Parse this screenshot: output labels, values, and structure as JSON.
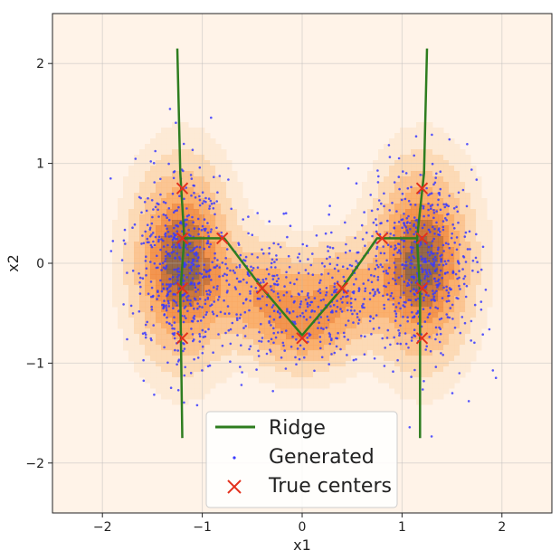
{
  "chart_data": {
    "type": "scatter",
    "title": "",
    "xlabel": "x1",
    "ylabel": "x2",
    "xlim": [
      -2.5,
      2.5
    ],
    "ylim": [
      -2.5,
      2.5
    ],
    "xticks": [
      -2,
      -1,
      0,
      1,
      2
    ],
    "yticks": [
      -2,
      -1,
      0,
      1,
      2
    ],
    "xtick_labels": [
      "−2",
      "−1",
      "0",
      "1",
      "2"
    ],
    "ytick_labels": [
      "−2",
      "−1",
      "0",
      "1",
      "2"
    ],
    "grid": true,
    "legend_position": "bottom-center",
    "background_color": "#fff3e8",
    "density": {
      "description": "KDE of generated samples; filled contours (light cream to dark orange/brown)",
      "colors": [
        "#fde9d4",
        "#fcd7b0",
        "#fbc08a",
        "#f9a860",
        "#f18b3f",
        "#c56a2c",
        "#8a5a3a"
      ],
      "components": [
        {
          "center": [
            -1.2,
            0.0
          ],
          "sigma_x": 0.28,
          "sigma_y": 0.55,
          "weight": 1.0
        },
        {
          "center": [
            1.2,
            0.0
          ],
          "sigma_x": 0.28,
          "sigma_y": 0.55,
          "weight": 1.0
        },
        {
          "center": [
            -0.4,
            -0.3
          ],
          "sigma_x": 0.3,
          "sigma_y": 0.3,
          "weight": 0.5
        },
        {
          "center": [
            0.4,
            -0.3
          ],
          "sigma_x": 0.3,
          "sigma_y": 0.3,
          "weight": 0.5
        },
        {
          "center": [
            0.0,
            -0.7
          ],
          "sigma_x": 0.3,
          "sigma_y": 0.25,
          "weight": 0.45
        }
      ]
    },
    "series": [
      {
        "name": "Ridge",
        "kind": "line",
        "color": "#2e7d1f",
        "segments": [
          {
            "x": [
              -1.25,
              -1.22,
              -1.18,
              -1.22,
              -1.2
            ],
            "y": [
              2.15,
              0.9,
              0.25,
              -0.3,
              -1.75
            ]
          },
          {
            "x": [
              -1.18,
              -0.78,
              -0.4,
              0.0,
              0.4,
              0.75,
              1.15
            ],
            "y": [
              0.25,
              0.25,
              -0.25,
              -0.72,
              -0.25,
              0.25,
              0.25
            ]
          },
          {
            "x": [
              1.25,
              1.22,
              1.15,
              1.18,
              1.18
            ],
            "y": [
              2.15,
              0.9,
              0.25,
              -0.3,
              -1.75
            ]
          }
        ]
      },
      {
        "name": "Generated",
        "kind": "scatter",
        "color": "#3a3aff",
        "generator": {
          "count": 1500,
          "seed": 7,
          "mixture": [
            {
              "center": [
                -1.2,
                0.0
              ],
              "sx": 0.26,
              "sy": 0.5,
              "weight": 0.36
            },
            {
              "center": [
                1.2,
                0.0
              ],
              "sx": 0.26,
              "sy": 0.5,
              "weight": 0.36
            },
            {
              "center": [
                -0.4,
                -0.25
              ],
              "sx": 0.25,
              "sy": 0.3,
              "weight": 0.1
            },
            {
              "center": [
                0.4,
                -0.25
              ],
              "sx": 0.25,
              "sy": 0.3,
              "weight": 0.1
            },
            {
              "center": [
                0.0,
                -0.65
              ],
              "sx": 0.3,
              "sy": 0.25,
              "weight": 0.08
            }
          ]
        }
      },
      {
        "name": "True centers",
        "kind": "marker",
        "color": "#e3301c",
        "points": [
          [
            -1.2,
            0.75
          ],
          [
            -1.2,
            0.25
          ],
          [
            -1.2,
            -0.25
          ],
          [
            -1.2,
            -0.75
          ],
          [
            1.2,
            0.75
          ],
          [
            1.2,
            0.25
          ],
          [
            1.2,
            -0.25
          ],
          [
            1.2,
            -0.75
          ],
          [
            -0.8,
            0.25
          ],
          [
            0.8,
            0.25
          ],
          [
            -0.4,
            -0.25
          ],
          [
            0.4,
            -0.25
          ],
          [
            0.0,
            -0.75
          ]
        ]
      }
    ],
    "legend": [
      {
        "label": "Ridge",
        "marker": "line"
      },
      {
        "label": "Generated",
        "marker": "dot"
      },
      {
        "label": "True centers",
        "marker": "x"
      }
    ]
  }
}
